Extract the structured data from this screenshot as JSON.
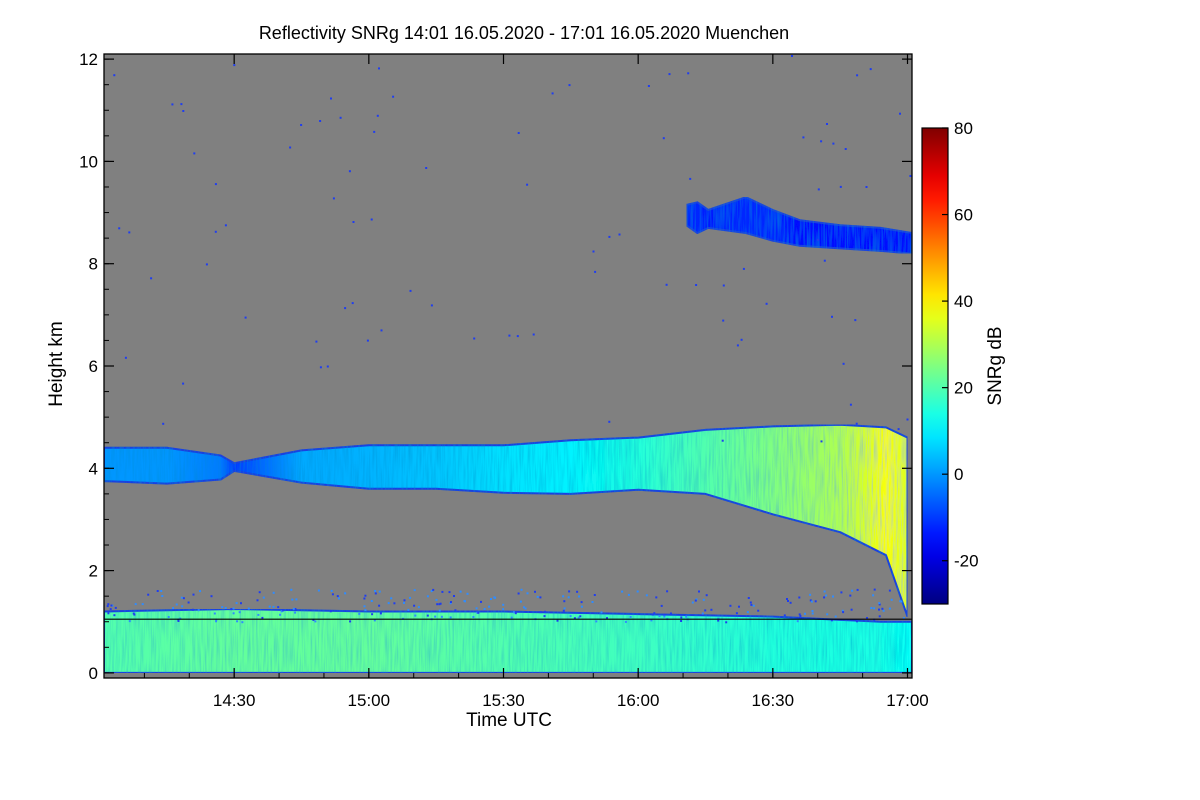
{
  "chart_data": {
    "type": "heatmap",
    "title": "Reflectivity SNRg   14:01 16.05.2020 - 17:01 16.05.2020 Muenchen",
    "xlabel": "Time UTC",
    "ylabel": "Height km",
    "xlim": [
      14.0167,
      17.0167
    ],
    "ylim": [
      -0.1,
      12.1
    ],
    "x_ticks": [
      {
        "value": 14.5,
        "label": "14:30"
      },
      {
        "value": 15.0,
        "label": "15:00"
      },
      {
        "value": 15.5,
        "label": "15:30"
      },
      {
        "value": 16.0,
        "label": "16:00"
      },
      {
        "value": 16.5,
        "label": "16:30"
      },
      {
        "value": 17.0,
        "label": "17:00"
      }
    ],
    "y_ticks": [
      0,
      2,
      4,
      6,
      8,
      10,
      12
    ],
    "background_color": "#808080",
    "reference_line": {
      "height_km": 1.05,
      "color": "#000000"
    },
    "colorbar": {
      "label": "SNRg dB",
      "range": [
        -30,
        80
      ],
      "ticks": [
        -20,
        0,
        20,
        40,
        60,
        80
      ],
      "colormap": "jet"
    },
    "layers": [
      {
        "name": "mid-level cloud",
        "x": [
          14.0167,
          14.25,
          14.45,
          14.5,
          14.75,
          15.0,
          15.25,
          15.5,
          15.75,
          16.0,
          16.25,
          16.5,
          16.75,
          16.92,
          17.0
        ],
        "bottom": [
          3.75,
          3.7,
          3.78,
          3.95,
          3.72,
          3.6,
          3.6,
          3.52,
          3.5,
          3.58,
          3.5,
          3.1,
          2.75,
          2.3,
          1.1
        ],
        "top": [
          4.4,
          4.4,
          4.25,
          4.1,
          4.35,
          4.45,
          4.45,
          4.45,
          4.55,
          4.6,
          4.75,
          4.82,
          4.85,
          4.8,
          4.6
        ],
        "snr_db": [
          0,
          0,
          -3,
          -10,
          2,
          3,
          5,
          8,
          10,
          15,
          20,
          25,
          30,
          38,
          35
        ]
      },
      {
        "name": "upper cirrus",
        "x": [
          16.18,
          16.22,
          16.26,
          16.4,
          16.5,
          16.6,
          16.75,
          16.9,
          17.0167
        ],
        "bottom": [
          8.75,
          8.6,
          8.7,
          8.6,
          8.45,
          8.35,
          8.3,
          8.25,
          8.2
        ],
        "top": [
          9.15,
          9.2,
          9.05,
          9.3,
          9.05,
          8.85,
          8.75,
          8.7,
          8.6
        ],
        "snr_db": [
          -12,
          -12,
          -14,
          -12,
          -12,
          -15,
          -15,
          -15,
          -15
        ]
      },
      {
        "name": "boundary layer",
        "x": [
          14.0167,
          14.5,
          15.0,
          15.5,
          16.0,
          16.5,
          16.9,
          17.0167
        ],
        "bottom": [
          0,
          0,
          0,
          0,
          0,
          0,
          0,
          0
        ],
        "top": [
          1.2,
          1.25,
          1.2,
          1.2,
          1.15,
          1.1,
          1.0,
          1.0
        ],
        "snr_db": [
          20,
          22,
          22,
          20,
          18,
          15,
          14,
          12
        ]
      }
    ]
  }
}
